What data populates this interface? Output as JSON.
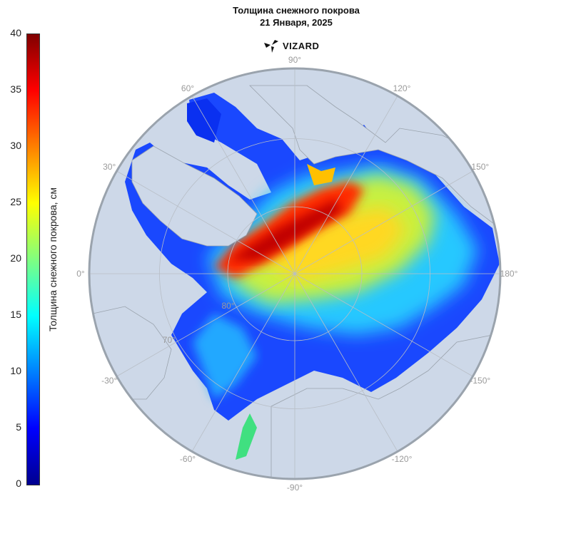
{
  "title": {
    "line1": "Толщина снежного покрова",
    "line2": "21 Января, 2025"
  },
  "brand": {
    "name": "VIZARD",
    "logo_icon": "vizard-logo-icon"
  },
  "colorbar": {
    "label": "Толщина снежного покрова, см",
    "min": 0,
    "max": 40,
    "ticks": [
      0,
      5,
      10,
      15,
      20,
      25,
      30,
      35,
      40
    ],
    "colors": [
      "#00008f",
      "#0000ff",
      "#0080ff",
      "#00ffff",
      "#80ff80",
      "#ffff00",
      "#ff8000",
      "#ff0000",
      "#800000"
    ]
  },
  "map": {
    "projection": "north-polar-stereographic",
    "ocean_color": "#cdd8e8",
    "land_color": "#cdd8e8",
    "border_color": "#9aa3ad",
    "longitude_labels": [
      {
        "deg": 0,
        "text": "0°"
      },
      {
        "deg": 30,
        "text": "30°"
      },
      {
        "deg": 60,
        "text": "60°"
      },
      {
        "deg": 90,
        "text": "90°"
      },
      {
        "deg": 120,
        "text": "120°"
      },
      {
        "deg": 150,
        "text": "150°"
      },
      {
        "deg": 180,
        "text": "180°"
      },
      {
        "deg": -150,
        "text": "-150°"
      },
      {
        "deg": -120,
        "text": "-120°"
      },
      {
        "deg": -90,
        "text": "-90°"
      },
      {
        "deg": -60,
        "text": "-60°"
      },
      {
        "deg": -30,
        "text": "-30°"
      }
    ],
    "latitude_labels": [
      {
        "deg": 80,
        "text": "80°"
      },
      {
        "deg": 70,
        "text": "70°"
      }
    ]
  }
}
